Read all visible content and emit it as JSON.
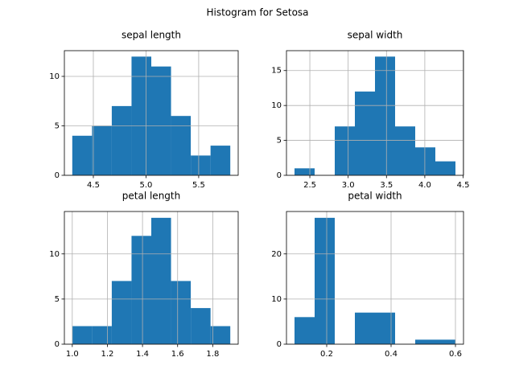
{
  "title": "Histogram for Setosa",
  "chart_data": [
    {
      "type": "histogram",
      "title": "sepal length",
      "color": "#1f77b4",
      "grid": true,
      "bins": [
        4.3,
        4.4875,
        4.675,
        4.8625,
        5.05,
        5.2375,
        5.425,
        5.6125,
        5.8
      ],
      "values": [
        4,
        5,
        7,
        12,
        11,
        6,
        2,
        3
      ],
      "xlim": [
        4.225,
        5.875
      ],
      "xticks": [
        4.5,
        {
          "value": 5,
          "label": "5.0"
        },
        5.5
      ],
      "ylim": [
        0,
        12.6
      ],
      "yticks": [
        0,
        5,
        10
      ]
    },
    {
      "type": "histogram",
      "title": "sepal width",
      "color": "#1f77b4",
      "grid": true,
      "bins": [
        2.3,
        2.5625,
        2.825,
        3.0875,
        3.35,
        3.6125,
        3.875,
        4.1375,
        4.4
      ],
      "values": [
        1,
        0,
        7,
        12,
        17,
        7,
        4,
        2
      ],
      "xlim": [
        2.195,
        4.505
      ],
      "xticks": [
        2.5,
        {
          "value": 3,
          "label": "3.0"
        },
        3.5,
        {
          "value": 4,
          "label": "4.0"
        },
        4.5
      ],
      "ylim": [
        0,
        17.85
      ],
      "yticks": [
        0,
        5,
        10,
        15
      ]
    },
    {
      "type": "histogram",
      "title": "petal length",
      "color": "#1f77b4",
      "grid": true,
      "bins": [
        1.0,
        1.1125,
        1.225,
        1.3375,
        1.45,
        1.5625,
        1.675,
        1.7875,
        1.9
      ],
      "values": [
        2,
        2,
        7,
        12,
        14,
        7,
        4,
        2
      ],
      "xlim": [
        0.955,
        1.945
      ],
      "xticks": [
        {
          "value": 1,
          "label": "1.0"
        },
        1.2,
        1.4,
        1.6,
        1.8
      ],
      "ylim": [
        0,
        14.7
      ],
      "yticks": [
        0,
        5,
        10
      ]
    },
    {
      "type": "histogram",
      "title": "petal width",
      "color": "#1f77b4",
      "grid": true,
      "bins": [
        0.1,
        0.1625,
        0.225,
        0.2875,
        0.35,
        0.4125,
        0.475,
        0.5375,
        0.6
      ],
      "values": [
        6,
        28,
        0,
        7,
        7,
        0,
        1,
        1
      ],
      "xlim": [
        0.075,
        0.625
      ],
      "xticks": [
        0.2,
        0.4,
        0.6
      ],
      "ylim": [
        0,
        29.4
      ],
      "yticks": [
        0,
        10,
        20
      ]
    }
  ]
}
